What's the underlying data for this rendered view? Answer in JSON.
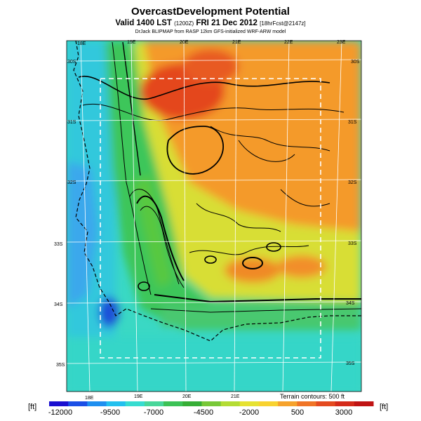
{
  "title": "OvercastDevelopment Potential",
  "subtitle": {
    "main": "Valid 1400 LST",
    "small1": "(1200Z)",
    "date": "FRI 21 Dec 2012",
    "small2": "[18hrFcst@2147z]"
  },
  "source_line": "DrJack BLIPMAP from RASP 12km GFS-initialized WRF-ARW model",
  "terrain_note": "Terrain contours: 500 ft",
  "colorbar": {
    "unit_left": "[ft]",
    "unit_right": "[ft]",
    "labels": [
      "-12000",
      "-9500",
      "-7000",
      "-4500",
      "-2000",
      "500",
      "3000"
    ],
    "colors": [
      "#1a0fd0",
      "#1b4fe6",
      "#1e8ff0",
      "#22c0ee",
      "#36dcd0",
      "#48d69a",
      "#3cc256",
      "#36ae36",
      "#78c838",
      "#b4dc34",
      "#e6e232",
      "#f8d230",
      "#f6a22c",
      "#f07426",
      "#e44a20",
      "#d42a1a",
      "#c01414"
    ]
  },
  "map": {
    "lon_labels_top": [
      "18E",
      "19E",
      "20E",
      "21E",
      "22E",
      "23E"
    ],
    "lon_labels_bottom": [
      "18E",
      "19E",
      "20E",
      "21E"
    ],
    "lat_labels_left": [
      "30S",
      "31S",
      "32S",
      "33S",
      "34S",
      "35S"
    ],
    "lat_labels_right": [
      "30S",
      "31S",
      "32S",
      "33S",
      "34S",
      "35S"
    ]
  }
}
